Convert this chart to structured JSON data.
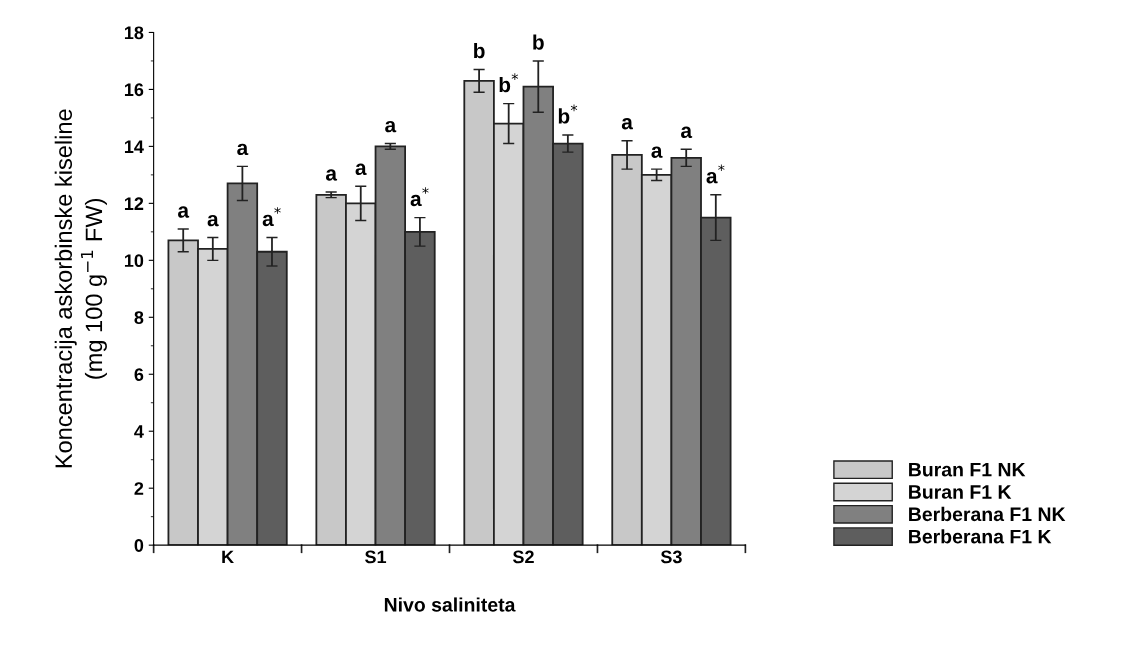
{
  "chart_data": {
    "type": "bar",
    "xlabel": "Nivo saliniteta",
    "ylabel": "Koncentracija askorbinske kiseline\n(mg 100 g$^{−1}$ FW)",
    "categories": [
      "K",
      "S1",
      "S2",
      "S3"
    ],
    "series": [
      {
        "name": "Buran F1 NK",
        "color": "#c8c8c8",
        "values": [
          10.7,
          12.3,
          16.3,
          13.7
        ],
        "errors": [
          0.4,
          0.1,
          0.4,
          0.5
        ],
        "value_labels": [
          "a",
          "a",
          "b",
          "a"
        ]
      },
      {
        "name": "Buran F1 K",
        "color": "#d4d4d4",
        "values": [
          10.4,
          12.0,
          14.8,
          13.0
        ],
        "errors": [
          0.4,
          0.6,
          0.7,
          0.2
        ],
        "value_labels": [
          "a",
          "a",
          "b$^{*}$",
          "a"
        ]
      },
      {
        "name": "Berberana F1 NK",
        "color": "#808080",
        "values": [
          12.7,
          14.0,
          16.1,
          13.6
        ],
        "errors": [
          0.6,
          0.1,
          0.9,
          0.3
        ],
        "value_labels": [
          "a",
          "a",
          "b",
          "a"
        ]
      },
      {
        "name": "Berberana F1 K",
        "color": "#5e5e5e",
        "values": [
          10.3,
          11.0,
          14.1,
          11.5
        ],
        "errors": [
          0.5,
          0.5,
          0.3,
          0.8
        ],
        "value_labels": [
          "a$^{*}$",
          "a$^{*}$",
          "b$^{*}$",
          "a$^{*}$"
        ]
      }
    ],
    "ylim": [
      0,
      18
    ],
    "yticks": [
      0,
      2,
      4,
      6,
      8,
      10,
      12,
      14,
      16,
      18
    ],
    "grid": false,
    "legend": "right"
  }
}
